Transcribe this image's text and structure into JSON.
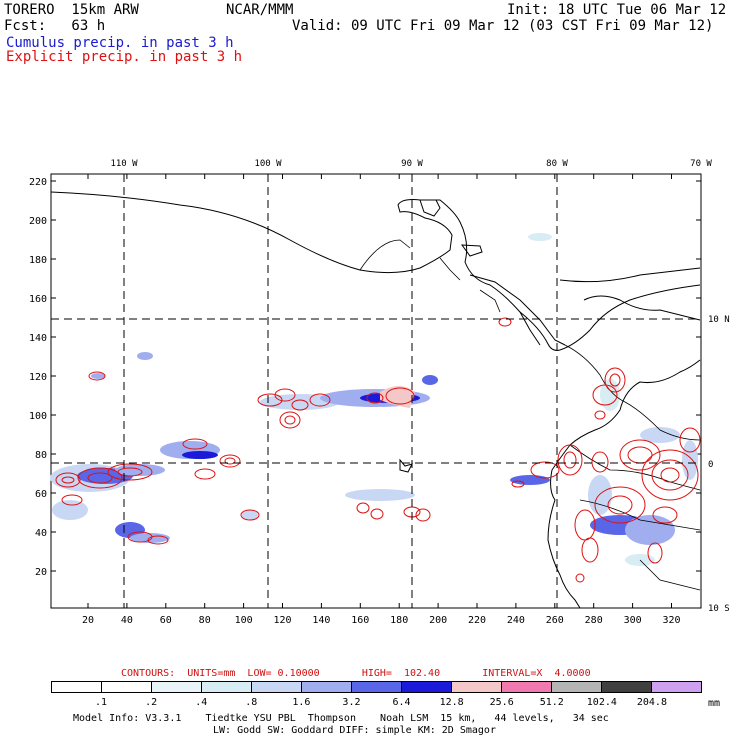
{
  "header": {
    "model": "TORERO  15km ARW",
    "center": "NCAR/MMM",
    "init": "Init: 18 UTC Tue 06 Mar 12",
    "fcst": "Fcst:   63 h",
    "valid": "Valid: 09 UTC Fri 09 Mar 12 (03 CST Fri 09 Mar 12)",
    "legend_cumulus": "Cumulus precip. in past 3 h",
    "legend_explicit": "Explicit precip. in past 3 h"
  },
  "colors": {
    "cumulus": "#1a1ad0",
    "explicit": "#e01010",
    "contour": "#e01010"
  },
  "map": {
    "lon_labels": [
      "110 W",
      "100 W",
      "90 W",
      "80 W",
      "70 W"
    ],
    "lat_labels": [
      "10 N",
      "0",
      "10 S"
    ],
    "y_ticks": [
      "20",
      "40",
      "60",
      "80",
      "100",
      "120",
      "140",
      "160",
      "180",
      "200",
      "220"
    ],
    "x_ticks": [
      "20",
      "40",
      "60",
      "80",
      "100",
      "120",
      "140",
      "160",
      "180",
      "200",
      "220",
      "240",
      "260",
      "280",
      "300",
      "320"
    ]
  },
  "contours_line": "CONTOURS:  UNITS=mm  LOW= 0.10000       HIGH=  102.40       INTERVAL=X  4.0000",
  "colorbar": {
    "labels": [
      ".1",
      ".2",
      ".4",
      ".8",
      "1.6",
      "3.2",
      "6.4",
      "12.8",
      "25.6",
      "51.2",
      "102.4",
      "204.8"
    ],
    "unit": "mm",
    "colors": [
      "#ffffff",
      "#ffffff",
      "#e8f4f8",
      "#d8ecf4",
      "#c8d8f4",
      "#a0aef0",
      "#5a66e8",
      "#1a1ad8",
      "#f4c8c8",
      "#f07ab0",
      "#b4b4b4",
      "#404040",
      "#d0a0f0"
    ]
  },
  "footer": {
    "line1": "Model Info: V3.3.1    Tiedtke YSU PBL  Thompson    Noah LSM  15 km,   44 levels,   34 sec",
    "line2": "LW: Godd SW: Goddard DIFF: simple KM: 2D Smagor"
  }
}
